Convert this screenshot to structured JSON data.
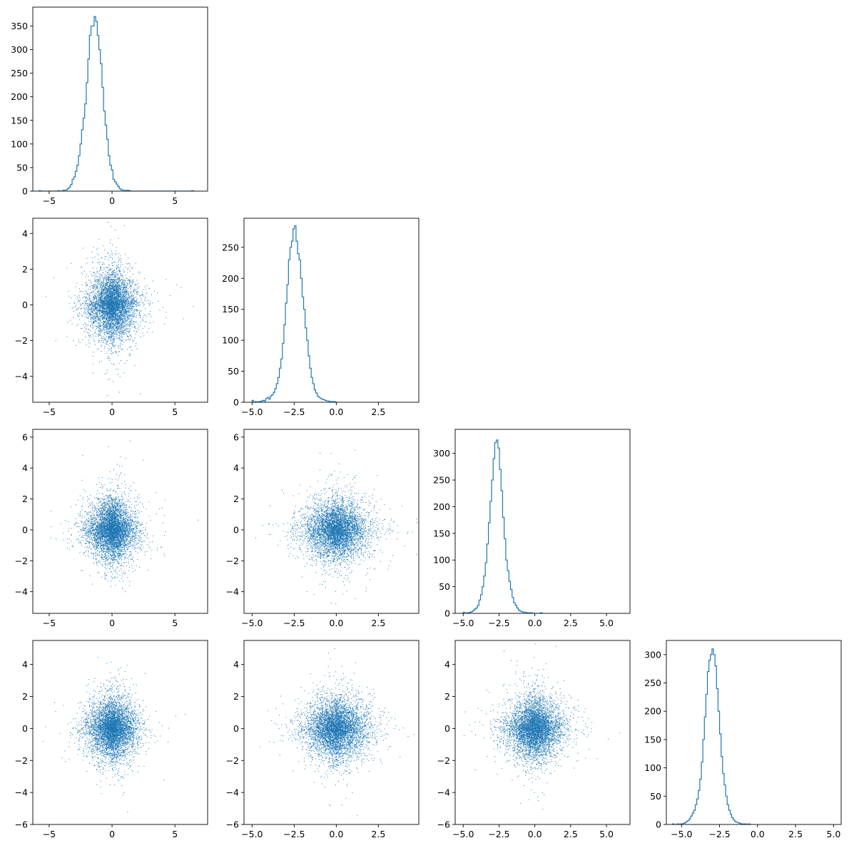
{
  "figure": {
    "type": "corner-plot",
    "series_color": "#1f77b4"
  },
  "chart_data": [
    {
      "type": "histogram",
      "row": 0,
      "col": 0,
      "xlim": [
        -6.3,
        7.6
      ],
      "ylim": [
        0,
        390
      ],
      "xticks": [
        -5,
        0,
        5
      ],
      "yticks": [
        0,
        50,
        100,
        150,
        200,
        250,
        300,
        350
      ],
      "xtick_labels": [
        "−5",
        "0",
        "5"
      ],
      "ytick_labels": [
        "0",
        "50",
        "100",
        "150",
        "200",
        "250",
        "300",
        "350"
      ],
      "bins": {
        "start": -5.8,
        "width": 0.125
      },
      "counts": [
        1,
        0,
        0,
        0,
        0,
        0,
        0,
        0,
        0,
        0,
        0,
        0,
        1,
        0,
        0,
        2,
        2,
        3,
        5,
        9,
        14,
        25,
        30,
        42,
        55,
        75,
        100,
        130,
        155,
        185,
        230,
        280,
        330,
        350,
        350,
        370,
        360,
        330,
        300,
        270,
        220,
        170,
        140,
        110,
        75,
        55,
        45,
        25,
        20,
        15,
        10,
        5,
        3,
        2,
        2,
        1,
        2,
        1,
        0,
        0,
        0,
        0,
        0,
        0,
        0,
        0,
        0,
        0,
        0,
        0,
        0,
        0,
        0,
        0,
        0,
        0,
        0,
        0,
        0,
        0,
        0,
        0,
        0,
        0,
        0,
        0,
        0,
        0,
        0,
        0,
        0,
        0,
        0,
        0,
        0,
        0,
        0,
        1,
        0
      ]
    },
    {
      "type": "histogram",
      "row": 1,
      "col": 1,
      "xlim": [
        -5.48,
        4.9
      ],
      "ylim": [
        0,
        297
      ],
      "xticks": [
        -5,
        -2.5,
        0,
        2.5
      ],
      "yticks": [
        0,
        50,
        100,
        150,
        200,
        250
      ],
      "xtick_labels": [
        "−5.0",
        "−2.5",
        "0.0",
        "2.5"
      ],
      "ytick_labels": [
        "0",
        "50",
        "100",
        "150",
        "200",
        "250"
      ],
      "bins": {
        "start": -5.0,
        "width": 0.09
      },
      "counts": [
        3,
        0,
        1,
        0,
        1,
        1,
        2,
        3,
        2,
        6,
        8,
        5,
        10,
        12,
        16,
        22,
        30,
        40,
        55,
        70,
        95,
        125,
        160,
        190,
        230,
        250,
        260,
        280,
        285,
        260,
        240,
        230,
        200,
        170,
        150,
        120,
        100,
        75,
        55,
        40,
        30,
        20,
        15,
        10,
        8,
        6,
        5,
        4,
        3,
        2,
        2,
        1,
        1,
        1,
        1,
        0,
        0
      ]
    },
    {
      "type": "histogram",
      "row": 2,
      "col": 2,
      "xlim": [
        -5.56,
        6.64
      ],
      "ylim": [
        0,
        345
      ],
      "xticks": [
        -5,
        -2.5,
        0,
        2.5,
        5
      ],
      "yticks": [
        0,
        50,
        100,
        150,
        200,
        250,
        300
      ],
      "xtick_labels": [
        "−5.0",
        "−2.5",
        "0.0",
        "2.5",
        "5.0"
      ],
      "ytick_labels": [
        "0",
        "50",
        "100",
        "150",
        "200",
        "250",
        "300"
      ],
      "bins": {
        "start": -5.0,
        "width": 0.11
      },
      "counts": [
        2,
        0,
        1,
        1,
        2,
        3,
        5,
        8,
        10,
        15,
        25,
        35,
        50,
        70,
        95,
        130,
        170,
        210,
        250,
        290,
        320,
        325,
        310,
        270,
        230,
        180,
        140,
        100,
        80,
        60,
        45,
        30,
        20,
        15,
        10,
        6,
        4,
        3,
        2,
        2,
        1,
        1,
        1,
        1,
        0,
        0,
        0,
        0,
        0,
        1,
        0
      ]
    },
    {
      "type": "histogram",
      "row": 3,
      "col": 3,
      "xlim": [
        -6.0,
        5.5
      ],
      "ylim": [
        0,
        325
      ],
      "xticks": [
        -5,
        -2.5,
        0,
        2.5,
        5
      ],
      "yticks": [
        0,
        50,
        100,
        150,
        200,
        250,
        300
      ],
      "xtick_labels": [
        "−5.0",
        "−2.5",
        "0.0",
        "2.5",
        "5.0"
      ],
      "ytick_labels": [
        "0",
        "50",
        "100",
        "150",
        "200",
        "250",
        "300"
      ],
      "bins": {
        "start": -5.6,
        "width": 0.1
      },
      "counts": [
        1,
        0,
        0,
        1,
        0,
        1,
        1,
        2,
        3,
        5,
        7,
        10,
        15,
        20,
        25,
        35,
        45,
        60,
        80,
        110,
        150,
        190,
        230,
        270,
        290,
        300,
        310,
        300,
        280,
        240,
        200,
        160,
        120,
        90,
        70,
        50,
        35,
        25,
        18,
        12,
        8,
        5,
        4,
        3,
        2,
        1,
        1,
        1,
        1,
        0,
        1,
        0
      ]
    },
    {
      "type": "scatter",
      "row": 1,
      "col": 0,
      "xlim": [
        -6.3,
        7.6
      ],
      "ylim": [
        -5.45,
        4.85
      ],
      "xticks": [
        -5,
        0,
        5
      ],
      "yticks": [
        -4,
        -2,
        0,
        2,
        4
      ],
      "xtick_labels": [
        "−5",
        "0",
        "5"
      ],
      "ytick_labels": [
        "−4",
        "−2",
        "0",
        "2",
        "4"
      ],
      "n_points": 5000,
      "x_dist": "laplace-like, mean 0",
      "y_dist": "laplace-like, mean 0"
    },
    {
      "type": "scatter",
      "row": 2,
      "col": 0,
      "xlim": [
        -6.3,
        7.6
      ],
      "ylim": [
        -5.4,
        6.5
      ],
      "xticks": [
        -5,
        0,
        5
      ],
      "yticks": [
        -4,
        -2,
        0,
        2,
        4,
        6
      ],
      "xtick_labels": [
        "−5",
        "0",
        "5"
      ],
      "ytick_labels": [
        "−4",
        "−2",
        "0",
        "2",
        "4",
        "6"
      ],
      "n_points": 5000
    },
    {
      "type": "scatter",
      "row": 2,
      "col": 1,
      "xlim": [
        -5.48,
        4.9
      ],
      "ylim": [
        -5.4,
        6.5
      ],
      "xticks": [
        -5,
        -2.5,
        0,
        2.5
      ],
      "yticks": [
        -4,
        -2,
        0,
        2,
        4,
        6
      ],
      "xtick_labels": [
        "−5.0",
        "−2.5",
        "0.0",
        "2.5"
      ],
      "ytick_labels": [
        "−4",
        "−2",
        "0",
        "2",
        "4",
        "6"
      ],
      "n_points": 5000
    },
    {
      "type": "scatter",
      "row": 3,
      "col": 0,
      "xlim": [
        -6.3,
        7.6
      ],
      "ylim": [
        -6.0,
        5.5
      ],
      "xticks": [
        -5,
        0,
        5
      ],
      "yticks": [
        -6,
        -4,
        -2,
        0,
        2,
        4
      ],
      "xtick_labels": [
        "−5",
        "0",
        "5"
      ],
      "ytick_labels": [
        "−6",
        "−4",
        "−2",
        "0",
        "2",
        "4"
      ],
      "n_points": 5000
    },
    {
      "type": "scatter",
      "row": 3,
      "col": 1,
      "xlim": [
        -5.48,
        4.9
      ],
      "ylim": [
        -6.0,
        5.5
      ],
      "xticks": [
        -5,
        -2.5,
        0,
        2.5
      ],
      "yticks": [
        -6,
        -4,
        -2,
        0,
        2,
        4
      ],
      "xtick_labels": [
        "−5.0",
        "−2.5",
        "0.0",
        "2.5"
      ],
      "ytick_labels": [
        "−6",
        "−4",
        "−2",
        "0",
        "2",
        "4"
      ],
      "n_points": 5000
    },
    {
      "type": "scatter",
      "row": 3,
      "col": 2,
      "xlim": [
        -5.56,
        6.64
      ],
      "ylim": [
        -6.0,
        5.5
      ],
      "xticks": [
        -5,
        -2.5,
        0,
        2.5,
        5
      ],
      "yticks": [
        -6,
        -4,
        -2,
        0,
        2,
        4
      ],
      "xtick_labels": [
        "−5.0",
        "−2.5",
        "0.0",
        "2.5",
        "5.0"
      ],
      "ytick_labels": [
        "−6",
        "−4",
        "−2",
        "0",
        "2",
        "4"
      ],
      "n_points": 5000
    }
  ]
}
